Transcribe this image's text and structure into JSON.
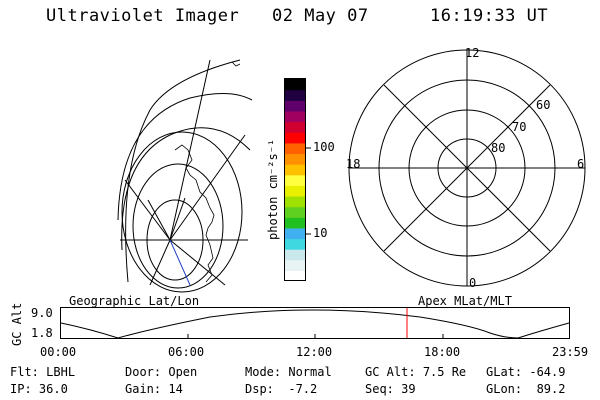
{
  "header": {
    "instrument": "Ultraviolet Imager",
    "date": "02 May 07",
    "time": "16:19:33 UT"
  },
  "colorbar": {
    "unit_label": "photon cm⁻²s⁻¹",
    "ticks": [
      "100",
      "10"
    ],
    "colors": [
      "#ffffff",
      "#e8f4f4",
      "#c8e8ec",
      "#40d8e0",
      "#40b0f0",
      "#20c020",
      "#60d020",
      "#a0e000",
      "#e8f000",
      "#ffff40",
      "#ffc000",
      "#ff9000",
      "#ff6000",
      "#ff0000",
      "#d00030",
      "#a00060",
      "#60006a",
      "#200040",
      "#000000"
    ]
  },
  "polar_plot": {
    "mlt_labels": {
      "top": "12",
      "bottom": "0",
      "left": "18",
      "right": "6"
    },
    "lat_labels": [
      "60",
      "70",
      "80"
    ]
  },
  "timeline": {
    "y_axis_label": "GC Alt",
    "y_ticks": [
      "9.0",
      "1.8"
    ],
    "left_label": "Geographic Lat/Lon",
    "right_label": "Apex MLat/MLT",
    "x_ticks": [
      "00:00",
      "06:00",
      "12:00",
      "18:00",
      "23:59"
    ],
    "current_marker_color": "#ff0000"
  },
  "status": {
    "filter": {
      "label": "Flt:",
      "value": "LBHL"
    },
    "ip": {
      "label": "IP:",
      "value": "36.0"
    },
    "door": {
      "label": "Door:",
      "value": "Open"
    },
    "gain": {
      "label": "Gain:",
      "value": "14"
    },
    "mode": {
      "label": "Mode:",
      "value": "Normal"
    },
    "dsp": {
      "label": "Dsp:",
      "value": "-7.2"
    },
    "gc_alt": {
      "label": "GC Alt:",
      "value": "7.5 Re"
    },
    "seq": {
      "label": "Seq:",
      "value": "39"
    },
    "glat": {
      "label": "GLat:",
      "value": "-64.9"
    },
    "glon": {
      "label": "GLon:",
      "value": "89.2"
    }
  }
}
